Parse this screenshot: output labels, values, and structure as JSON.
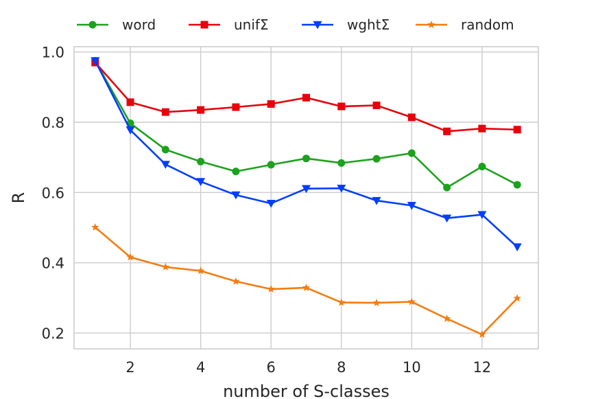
{
  "chart_data": {
    "type": "line",
    "xlabel": "number of S-classes",
    "ylabel": "R",
    "xlim": [
      0.4,
      13.6
    ],
    "ylim": [
      0.155,
      1.015
    ],
    "xticks": [
      2,
      4,
      6,
      8,
      10,
      12
    ],
    "yticks": [
      0.2,
      0.4,
      0.6,
      0.8,
      1.0
    ],
    "xtick_labels": [
      "2",
      "4",
      "6",
      "8",
      "10",
      "12"
    ],
    "ytick_labels": [
      "0.2",
      "0.4",
      "0.6",
      "0.8",
      "1.0"
    ],
    "grid": true,
    "legend_position": "top",
    "x": [
      1,
      2,
      3,
      4,
      5,
      6,
      7,
      8,
      9,
      10,
      11,
      12,
      13
    ],
    "series": [
      {
        "name": "word",
        "color": "#1ca21c",
        "marker": "circle",
        "values": [
          0.975,
          0.797,
          0.722,
          0.688,
          0.66,
          0.679,
          0.697,
          0.684,
          0.696,
          0.712,
          0.614,
          0.674,
          0.622
        ]
      },
      {
        "name": "unifΣ",
        "color": "#e8000b",
        "marker": "square",
        "values": [
          0.97,
          0.857,
          0.829,
          0.835,
          0.843,
          0.852,
          0.87,
          0.845,
          0.848,
          0.814,
          0.774,
          0.782,
          0.779
        ]
      },
      {
        "name": "wghtΣ",
        "color": "#023eff",
        "marker": "triangle-down",
        "values": [
          0.975,
          0.778,
          0.68,
          0.631,
          0.593,
          0.569,
          0.611,
          0.612,
          0.577,
          0.563,
          0.527,
          0.537,
          0.445
        ]
      },
      {
        "name": "random",
        "color": "#f57c10",
        "marker": "star",
        "values": [
          0.501,
          0.416,
          0.388,
          0.377,
          0.347,
          0.325,
          0.329,
          0.287,
          0.286,
          0.289,
          0.241,
          0.196,
          0.299
        ]
      }
    ]
  }
}
